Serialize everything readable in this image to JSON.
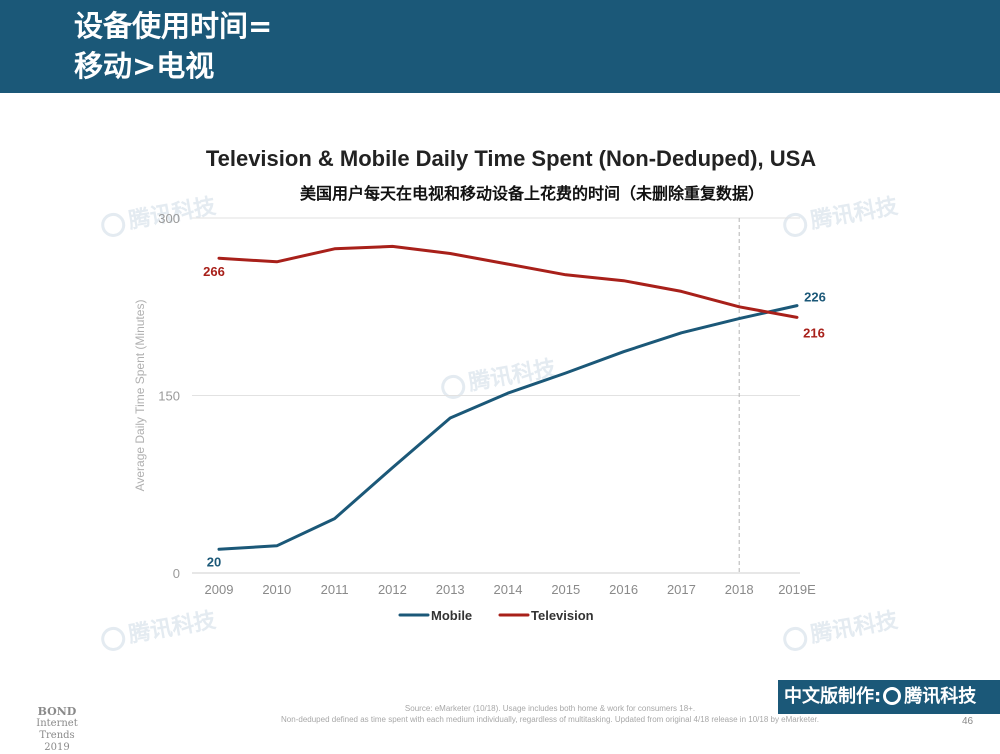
{
  "header": {
    "title": "设备使用时间=\n移动>电视"
  },
  "watermark": {
    "text": "腾讯科技"
  },
  "chart_data": {
    "type": "line",
    "title": "Television & Mobile Daily Time Spent (Non-Deduped), USA",
    "subtitle": "美国用户每天在电视和移动设备上花费的时间（未删除重复数据）",
    "ylabel": "Average Daily Time Spent (Minutes)",
    "xlabel": "",
    "categories": [
      "2009",
      "2010",
      "2011",
      "2012",
      "2013",
      "2014",
      "2015",
      "2016",
      "2017",
      "2018",
      "2019E"
    ],
    "ylim": [
      0,
      300
    ],
    "yticks": [
      "0",
      "150",
      "300"
    ],
    "grid": true,
    "legend_position": "bottom",
    "divider_after_category": "2018",
    "series": [
      {
        "name": "Mobile",
        "color": "#1b5878",
        "values": [
          20,
          23,
          46,
          89,
          131,
          152,
          169,
          187,
          203,
          215,
          226
        ],
        "labels": {
          "0": "20",
          "10": "226"
        }
      },
      {
        "name": "Television",
        "color": "#a8201a",
        "values": [
          266,
          263,
          274,
          276,
          270,
          261,
          252,
          247,
          238,
          225,
          216
        ],
        "labels": {
          "0": "266",
          "10": "216"
        }
      }
    ]
  },
  "footer": {
    "source_line1": "Source: eMarketer (10/18). Usage includes both home & work for consumers 18+.",
    "source_line2": "Non-deduped defined as time spent with each medium individually, regardless of multitasking. Updated from original 4/18 release in 10/18 by eMarketer.",
    "bond": "BOND",
    "report": "Internet Trends",
    "year": "2019",
    "page": "46",
    "brand_text": "中文版制作:",
    "brand_name": "腾讯科技"
  }
}
